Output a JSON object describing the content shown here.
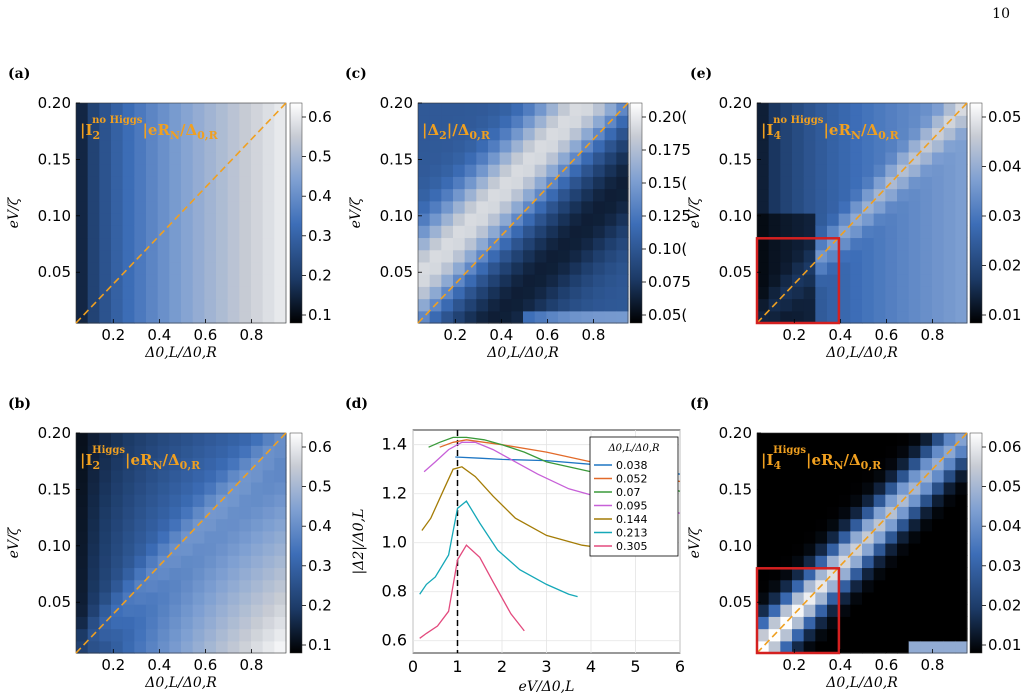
{
  "page_number": "10",
  "colorbar_colors": [
    "#000000",
    "#1c3a66",
    "#3d6eb8",
    "#7fa0d2",
    "#c8ccd4",
    "#ffffff"
  ],
  "accent_colors": {
    "diagonal": "#f0a020",
    "box": "#d42020",
    "dashed_vertical": "#000000",
    "inset_title": "#f0a020"
  },
  "heatmaps": [
    {
      "panel": "(a)",
      "ylabel": "eV/ζ",
      "xlabel": "Δ0,L/Δ0,R",
      "title": [
        "|I",
        "2",
        "no Higgs",
        "|eR",
        "N",
        "/Δ",
        "0,R"
      ],
      "xticks": [
        "0.2",
        "0.4",
        "0.6",
        "0.8"
      ],
      "yticks": [
        "0.05",
        "0.10",
        "0.15",
        "0.20"
      ],
      "cbar_ticks": [
        "0.1",
        "0.2",
        "0.3",
        "0.4",
        "0.5",
        "0.6"
      ],
      "cbar_range": [
        0.1,
        0.68
      ]
    },
    {
      "panel": "(c)",
      "ylabel": "eV/ζ",
      "xlabel": "Δ0,L/Δ0,R",
      "title": [
        "|Δ",
        "2",
        "",
        "|/Δ",
        "0,R",
        "",
        ""
      ],
      "xticks": [
        "0.2",
        "0.4",
        "0.6",
        "0.8"
      ],
      "yticks": [
        "0.05",
        "0.10",
        "0.15",
        "0.20"
      ],
      "cbar_ticks": [
        "0.05(",
        "0.075",
        "0.10(",
        "0.125",
        "0.15(",
        "0.175",
        "0.20("
      ],
      "cbar_range": [
        0.04,
        0.21
      ]
    },
    {
      "panel": "(e)",
      "ylabel": "eV/ζ",
      "xlabel": "Δ0,L/Δ0,R",
      "title": [
        "|I",
        "4",
        "no Higgs",
        "|eR",
        "N",
        "/Δ",
        "0,R"
      ],
      "xticks": [
        "0.2",
        "0.4",
        "0.6",
        "0.8"
      ],
      "yticks": [
        "0.05",
        "0.10",
        "0.15",
        "0.20"
      ],
      "cbar_ticks": [
        "0.01",
        "0.02",
        "0.03",
        "0.04",
        "0.05"
      ],
      "cbar_range": [
        0.0,
        0.056
      ]
    },
    {
      "panel": "(b)",
      "ylabel": "eV/ζ",
      "xlabel": "Δ0,L/Δ0,R",
      "title": [
        "|I",
        "2",
        "Higgs",
        "|eR",
        "N",
        "/Δ",
        "0,R"
      ],
      "xticks": [
        "0.2",
        "0.4",
        "0.6",
        "0.8"
      ],
      "yticks": [
        "0.05",
        "0.10",
        "0.15",
        "0.20"
      ],
      "cbar_ticks": [
        "0.1",
        "0.2",
        "0.3",
        "0.4",
        "0.5",
        "0.6"
      ],
      "cbar_range": [
        0.0,
        0.65
      ]
    },
    {
      "panel": "(f)",
      "ylabel": "eV/ζ",
      "xlabel": "Δ0,L/Δ0,R",
      "title": [
        "|I",
        "4",
        "Higgs",
        "|eR",
        "N",
        "/Δ",
        "0,R"
      ],
      "xticks": [
        "0.2",
        "0.4",
        "0.6",
        "0.8"
      ],
      "yticks": [
        "0.05",
        "0.10",
        "0.15",
        "0.20"
      ],
      "cbar_ticks": [
        "0.01",
        "0.02",
        "0.03",
        "0.04",
        "0.05",
        "0.06"
      ],
      "cbar_range": [
        0.0,
        0.063
      ]
    }
  ],
  "chart_data": [
    {
      "panel": "(a)",
      "type": "heatmap",
      "x_range": [
        0.038,
        0.95
      ],
      "y_range": [
        0.005,
        0.2
      ],
      "grid": [
        18,
        18
      ],
      "pattern": "I2 current without Higgs: low at small Δ0,L/Δ0,R, rising to ~0.68 at large ratio"
    },
    {
      "panel": "(c)",
      "type": "heatmap",
      "x_range": [
        0.038,
        0.95
      ],
      "y_range": [
        0.005,
        0.2
      ],
      "grid": [
        18,
        18
      ],
      "pattern": "|Δ2|/Δ0,R: bright band above diagonal eV/ζ≈0.2·ratio, dark below"
    },
    {
      "panel": "(e)",
      "type": "heatmap",
      "x_range": [
        0.038,
        0.95
      ],
      "y_range": [
        0.005,
        0.2
      ],
      "grid": [
        18,
        18
      ],
      "pattern": "I4 without Higgs"
    },
    {
      "panel": "(b)",
      "type": "heatmap",
      "x_range": [
        0.038,
        0.95
      ],
      "y_range": [
        0.005,
        0.2
      ],
      "grid": [
        18,
        18
      ],
      "pattern": "I2 with Higgs"
    },
    {
      "panel": "(f)",
      "type": "heatmap",
      "x_range": [
        0.038,
        0.95
      ],
      "y_range": [
        0.005,
        0.2
      ],
      "grid": [
        18,
        18
      ],
      "pattern": "I4 with Higgs: bright along diagonal"
    },
    {
      "panel": "(d)",
      "type": "line",
      "xlabel": "eV/Δ0,L",
      "ylabel": "|Δ2|/Δ0,L",
      "xlim": [
        0,
        6
      ],
      "ylim": [
        0.55,
        1.46
      ],
      "xticks": [
        0,
        1,
        2,
        3,
        4,
        5,
        6
      ],
      "yticks": [
        0.6,
        0.8,
        1.0,
        1.2,
        1.4
      ],
      "grid": true,
      "legend_position": "top-right",
      "legend_title": "Δ0,L/Δ0,R",
      "vline_x": 1,
      "series": [
        {
          "name": "0.038",
          "color": "#1f77c4",
          "x": [
            0.95,
            1.5,
            2,
            3,
            4,
            5,
            6
          ],
          "y": [
            1.35,
            1.345,
            1.34,
            1.335,
            1.32,
            1.3,
            1.28
          ]
        },
        {
          "name": "0.052",
          "color": "#e26a2a",
          "x": [
            0.6,
            0.9,
            1.2,
            1.6,
            2,
            3,
            4,
            5,
            6
          ],
          "y": [
            1.39,
            1.41,
            1.42,
            1.41,
            1.4,
            1.37,
            1.33,
            1.29,
            1.25
          ]
        },
        {
          "name": "0.07",
          "color": "#3a9a3a",
          "x": [
            0.35,
            0.6,
            0.9,
            1.2,
            1.6,
            2,
            2.5,
            3,
            4,
            5,
            6
          ],
          "y": [
            1.39,
            1.41,
            1.43,
            1.43,
            1.42,
            1.4,
            1.37,
            1.33,
            1.29,
            1.25,
            1.21
          ]
        },
        {
          "name": "0.095",
          "color": "#c760d8",
          "x": [
            0.25,
            0.5,
            0.8,
            1.1,
            1.4,
            1.8,
            2.2,
            2.8,
            3.5,
            4.5,
            5.5,
            6
          ],
          "y": [
            1.29,
            1.33,
            1.38,
            1.41,
            1.41,
            1.38,
            1.34,
            1.28,
            1.22,
            1.17,
            1.14,
            1.12
          ]
        },
        {
          "name": "0.144",
          "color": "#a47c06",
          "x": [
            0.2,
            0.4,
            0.7,
            0.9,
            1.1,
            1.4,
            1.8,
            2.3,
            3,
            3.8,
            4.6
          ],
          "y": [
            1.05,
            1.1,
            1.22,
            1.3,
            1.31,
            1.27,
            1.19,
            1.1,
            1.03,
            0.99,
            0.97
          ]
        },
        {
          "name": "0.213",
          "color": "#15a8b8",
          "x": [
            0.15,
            0.3,
            0.5,
            0.8,
            1.0,
            1.2,
            1.5,
            1.9,
            2.4,
            3,
            3.5,
            3.7
          ],
          "y": [
            0.79,
            0.83,
            0.86,
            0.95,
            1.14,
            1.17,
            1.08,
            0.97,
            0.89,
            0.83,
            0.79,
            0.78
          ]
        },
        {
          "name": "0.305",
          "color": "#e34a7e",
          "x": [
            0.15,
            0.3,
            0.55,
            0.8,
            1.0,
            1.2,
            1.5,
            1.8,
            2.2,
            2.5
          ],
          "y": [
            0.61,
            0.63,
            0.66,
            0.72,
            0.93,
            0.99,
            0.94,
            0.84,
            0.71,
            0.64
          ]
        }
      ]
    }
  ],
  "panel_d": {
    "label": "(d)",
    "xlabel": "eV/Δ0,L",
    "ylabel": "|Δ2|/Δ0,L",
    "legend_title": "Δ0,L/Δ0,R",
    "xtick_labels": [
      "0",
      "1",
      "2",
      "3",
      "4",
      "5",
      "6"
    ],
    "ytick_labels": [
      "0.6",
      "0.8",
      "1.0",
      "1.2",
      "1.4"
    ]
  }
}
